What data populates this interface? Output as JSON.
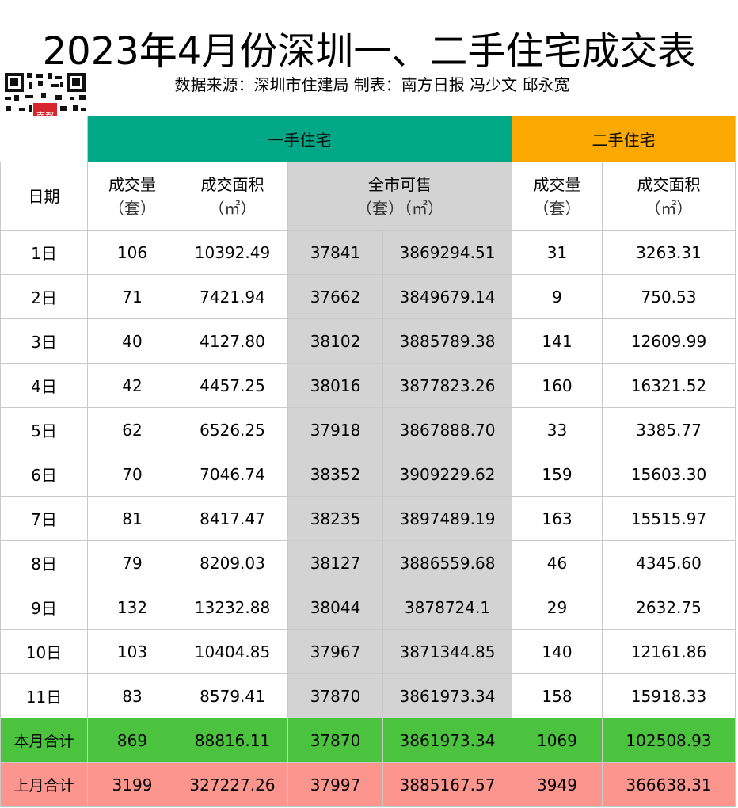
{
  "title": "2023年4月份深圳一、二手住宅成交表",
  "subtitle": "数据来源：深圳市住建局 制表：南方日报 冯少文 邱永宽",
  "logo_text": "南都",
  "groups": {
    "new": "一手住宅",
    "second": "二手住宅"
  },
  "headers": {
    "date": "日期",
    "new_volume": "成交量",
    "new_volume_unit": "（套）",
    "new_area": "成交面积",
    "new_area_unit": "（㎡）",
    "avail": "全市可售",
    "avail_unit": "（套）（㎡）",
    "sec_volume": "成交量",
    "sec_volume_unit": "（套）",
    "sec_area": "成交面积",
    "sec_area_unit": "（㎡）"
  },
  "rows": [
    {
      "date": "1日",
      "nv": "106",
      "na": "10392.49",
      "as": "37841",
      "aa": "3869294.51",
      "sv": "31",
      "sa": "3263.31"
    },
    {
      "date": "2日",
      "nv": "71",
      "na": "7421.94",
      "as": "37662",
      "aa": "3849679.14",
      "sv": "9",
      "sa": "750.53"
    },
    {
      "date": "3日",
      "nv": "40",
      "na": "4127.80",
      "as": "38102",
      "aa": "3885789.38",
      "sv": "141",
      "sa": "12609.99"
    },
    {
      "date": "4日",
      "nv": "42",
      "na": "4457.25",
      "as": "38016",
      "aa": "3877823.26",
      "sv": "160",
      "sa": "16321.52"
    },
    {
      "date": "5日",
      "nv": "62",
      "na": "6526.25",
      "as": "37918",
      "aa": "3867888.70",
      "sv": "33",
      "sa": "3385.77"
    },
    {
      "date": "6日",
      "nv": "70",
      "na": "7046.74",
      "as": "38352",
      "aa": "3909229.62",
      "sv": "159",
      "sa": "15603.30"
    },
    {
      "date": "7日",
      "nv": "81",
      "na": "8417.47",
      "as": "38235",
      "aa": "3897489.19",
      "sv": "163",
      "sa": "15515.97"
    },
    {
      "date": "8日",
      "nv": "79",
      "na": "8209.03",
      "as": "38127",
      "aa": "3886559.68",
      "sv": "46",
      "sa": "4345.60"
    },
    {
      "date": "9日",
      "nv": "132",
      "na": "13232.88",
      "as": "38044",
      "aa": "3878724.1",
      "sv": "29",
      "sa": "2632.75"
    },
    {
      "date": "10日",
      "nv": "103",
      "na": "10404.85",
      "as": "37967",
      "aa": "3871344.85",
      "sv": "140",
      "sa": "12161.86"
    },
    {
      "date": "11日",
      "nv": "83",
      "na": "8579.41",
      "as": "37870",
      "aa": "3861973.34",
      "sv": "158",
      "sa": "15918.33"
    }
  ],
  "month_total": {
    "label": "本月合计",
    "nv": "869",
    "na": "88816.11",
    "as": "37870",
    "aa": "3861973.34",
    "sv": "1069",
    "sa": "102508.93"
  },
  "prev_total": {
    "label": "上月合计",
    "nv": "3199",
    "na": "327227.26",
    "as": "37997",
    "aa": "3885167.57",
    "sv": "3949",
    "sa": "366638.31"
  },
  "colors": {
    "new_header": "#00a887",
    "second_header": "#fba800",
    "available": "#d3d3d3",
    "month_total": "#4cc33f",
    "prev_total": "#fb958d"
  }
}
